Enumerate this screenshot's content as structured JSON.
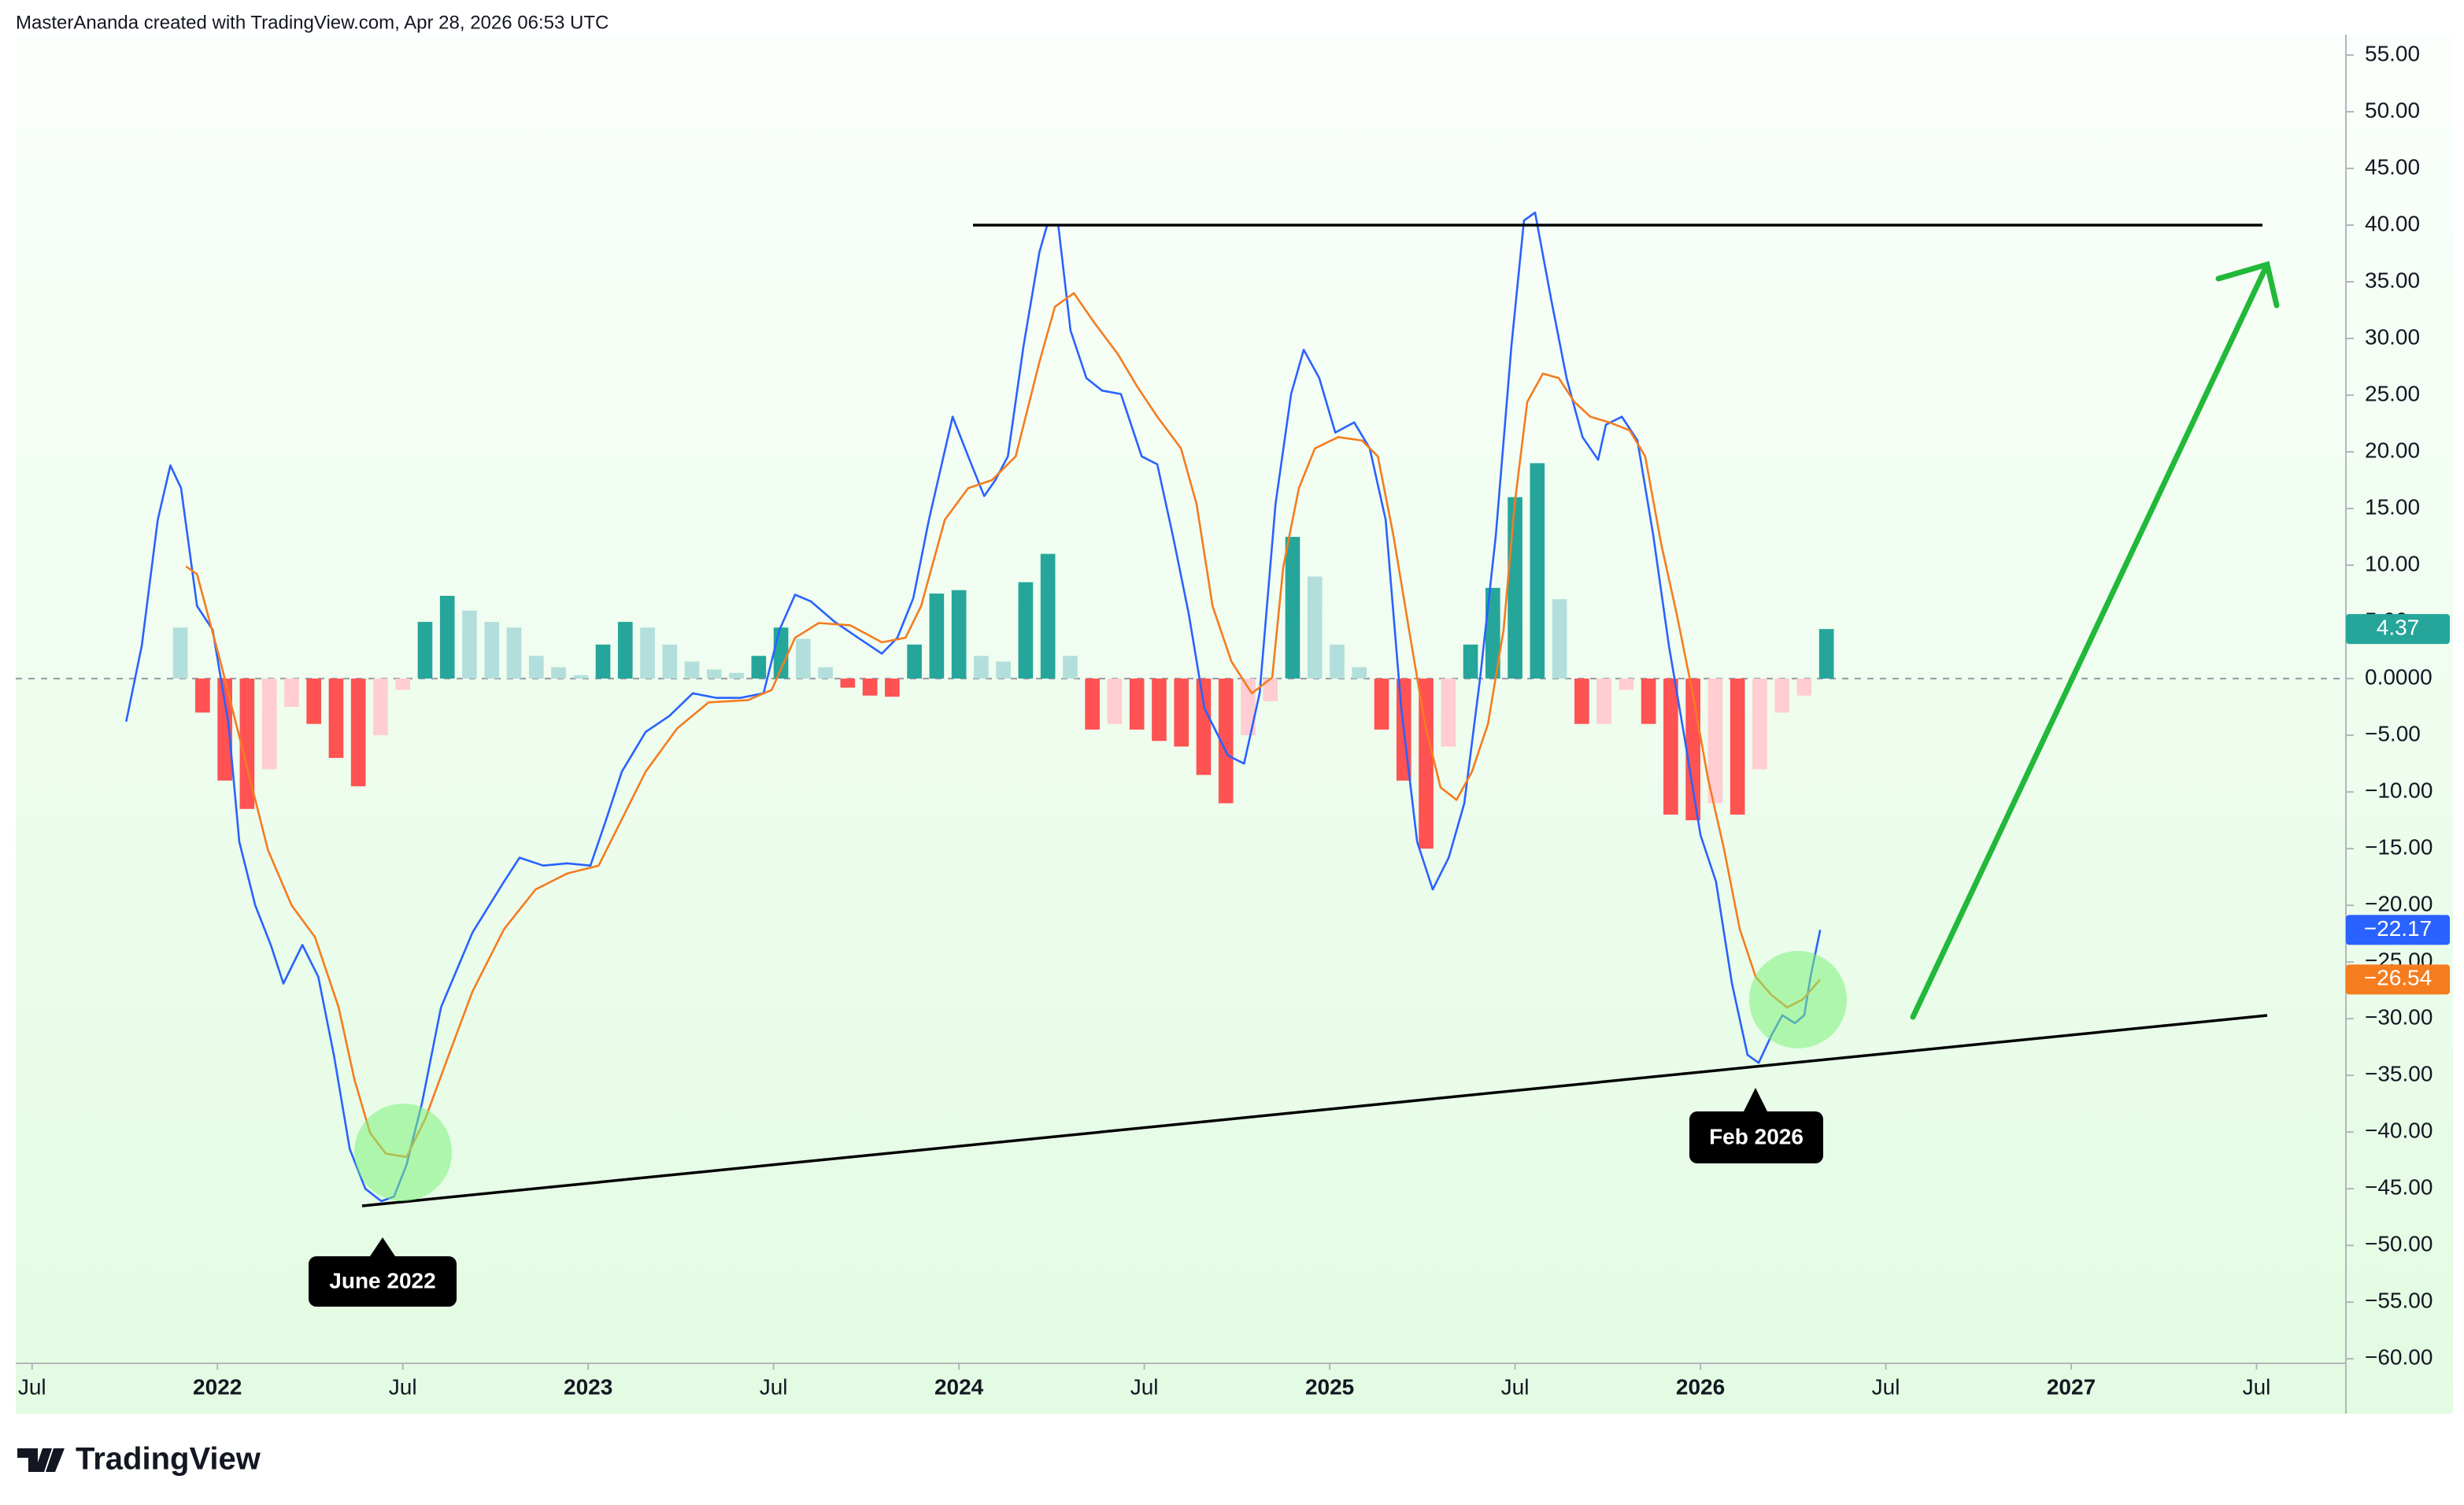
{
  "header": {
    "attribution": "MasterAnanda created with TradingView.com, Apr 28, 2026 06:53 UTC"
  },
  "footer": {
    "brand": "TradingView"
  },
  "chart_data": {
    "type": "line",
    "xlim": [
      2021.456,
      2027.741
    ],
    "ylim": [
      -60.4,
      56.8
    ],
    "xticks": [
      {
        "value": 2021.5,
        "label": "Jul"
      },
      2022,
      {
        "value": 2022.5,
        "label": "Jul"
      },
      2023,
      {
        "value": 2023.5,
        "label": "Jul"
      },
      2024,
      {
        "value": 2024.5,
        "label": "Jul"
      },
      2025,
      {
        "value": 2025.5,
        "label": "Jul"
      },
      2026,
      {
        "value": 2026.5,
        "label": "Jul"
      },
      2027,
      {
        "value": 2027.5,
        "label": "Jul"
      }
    ],
    "yticks": [
      {
        "value": 55,
        "label": "55.00"
      },
      {
        "value": 50,
        "label": "50.00"
      },
      {
        "value": 45,
        "label": "45.00"
      },
      {
        "value": 40,
        "label": "40.00"
      },
      {
        "value": 35,
        "label": "35.00"
      },
      {
        "value": 30,
        "label": "30.00"
      },
      {
        "value": 25,
        "label": "25.00"
      },
      {
        "value": 20,
        "label": "20.00"
      },
      {
        "value": 15,
        "label": "15.00"
      },
      {
        "value": 10,
        "label": "10.00"
      },
      {
        "value": 5,
        "label": "5.00"
      },
      {
        "value": 0,
        "label": "0.0000"
      },
      {
        "value": -5,
        "label": "−5.00"
      },
      {
        "value": -10,
        "label": "−10.00"
      },
      {
        "value": -15,
        "label": "−15.00"
      },
      {
        "value": -20,
        "label": "−20.00"
      },
      {
        "value": -25,
        "label": "−25.00"
      },
      {
        "value": -30,
        "label": "−30.00"
      },
      {
        "value": -35,
        "label": "−35.00"
      },
      {
        "value": -40,
        "label": "−40.00"
      },
      {
        "value": -45,
        "label": "−45.00"
      },
      {
        "value": -50,
        "label": "−50.00"
      },
      {
        "value": -55,
        "label": "−55.00"
      },
      {
        "value": -60,
        "label": "−60.00"
      }
    ],
    "zero_line": true,
    "annotations": [
      "June 2022",
      "Feb 2026"
    ],
    "series": [
      {
        "type": "bar",
        "colors": [
          "#26a69a",
          "#b2dfdb",
          "#ff5252",
          "#ffcdd2"
        ],
        "x": [
          2021.9,
          2021.96,
          2022.02,
          2022.08,
          2022.14,
          2022.2,
          2022.26,
          2022.32,
          2022.38,
          2022.44,
          2022.5,
          2022.56,
          2022.62,
          2022.68,
          2022.74,
          2022.8,
          2022.86,
          2022.92,
          2022.98,
          2023.04,
          2023.1,
          2023.16,
          2023.22,
          2023.28,
          2023.34,
          2023.4,
          2023.46,
          2023.52,
          2023.58,
          2023.64,
          2023.7,
          2023.76,
          2023.82,
          2023.88,
          2023.94,
          2024.0,
          2024.06,
          2024.12,
          2024.18,
          2024.24,
          2024.3,
          2024.36,
          2024.42,
          2024.48,
          2024.54,
          2024.6,
          2024.66,
          2024.72,
          2024.78,
          2024.84,
          2024.9,
          2024.96,
          2025.02,
          2025.08,
          2025.14,
          2025.2,
          2025.26,
          2025.32,
          2025.38,
          2025.44,
          2025.5,
          2025.56,
          2025.62,
          2025.68,
          2025.74,
          2025.8,
          2025.86,
          2025.92,
          2025.98,
          2026.04,
          2026.1,
          2026.16,
          2026.22,
          2026.28,
          2026.34
        ],
        "values": [
          4.5,
          -3,
          -9,
          -11.5,
          -8,
          -2.5,
          -4,
          -7,
          -9.5,
          -5,
          -1,
          5,
          7.3,
          6,
          5,
          4.5,
          2,
          1,
          0.3,
          3,
          5,
          4.5,
          3,
          1.5,
          0.8,
          0.5,
          2,
          4.5,
          3.5,
          1,
          -0.8,
          -1.5,
          -1.6,
          3,
          7.5,
          7.8,
          2,
          1.5,
          8.5,
          11,
          2,
          -4.5,
          -4,
          -4.5,
          -5.5,
          -6,
          -8.5,
          -11,
          -5,
          -2,
          12.5,
          9,
          3,
          1,
          -4.5,
          -9,
          -15,
          -6,
          3,
          8,
          16,
          19,
          7,
          -4,
          -4,
          -1,
          -4,
          -12,
          -12.5,
          -11,
          -12,
          -8,
          -3,
          -1.5,
          4.37
        ]
      },
      {
        "type": "line",
        "color": "#2962ff",
        "last_label": "−22.17",
        "x": [
          2021.754,
          2021.796,
          2021.839,
          2021.873,
          2021.902,
          2021.945,
          2021.987,
          2022.03,
          2022.059,
          2022.102,
          2022.144,
          2022.178,
          2022.229,
          2022.272,
          2022.314,
          2022.357,
          2022.399,
          2022.442,
          2022.476,
          2022.51,
          2022.552,
          2022.603,
          2022.688,
          2022.773,
          2022.815,
          2022.879,
          2022.943,
          2023.006,
          2023.049,
          2023.091,
          2023.155,
          2023.219,
          2023.282,
          2023.346,
          2023.41,
          2023.473,
          2023.516,
          2023.558,
          2023.601,
          2023.665,
          2023.728,
          2023.792,
          2023.834,
          2023.877,
          2023.919,
          2023.983,
          2024.025,
          2024.068,
          2024.098,
          2024.132,
          2024.174,
          2024.217,
          2024.238,
          2024.268,
          2024.301,
          2024.344,
          2024.386,
          2024.437,
          2024.493,
          2024.535,
          2024.577,
          2024.62,
          2024.662,
          2024.726,
          2024.769,
          2024.811,
          2024.854,
          2024.896,
          2024.93,
          2024.972,
          2025.015,
          2025.066,
          2025.108,
          2025.151,
          2025.193,
          2025.236,
          2025.278,
          2025.321,
          2025.363,
          2025.406,
          2025.448,
          2025.49,
          2025.524,
          2025.554,
          2025.597,
          2025.639,
          2025.682,
          2025.724,
          2025.745,
          2025.788,
          2025.83,
          2025.873,
          2025.915,
          2025.958,
          2026.0,
          2026.042,
          2026.085,
          2026.127,
          2026.157,
          2026.191,
          2026.221,
          2026.255,
          2026.28,
          2026.297,
          2026.323
        ],
        "values": [
          -3.8,
          2.9,
          14.0,
          18.8,
          16.8,
          6.4,
          4.3,
          -4.0,
          -14.4,
          -20.0,
          -23.5,
          -26.9,
          -23.5,
          -26.3,
          -33.2,
          -41.5,
          -45.0,
          -46.1,
          -45.7,
          -42.9,
          -37.4,
          -29.0,
          -22.4,
          -17.9,
          -15.8,
          -16.5,
          -16.3,
          -16.5,
          -12.4,
          -8.2,
          -4.7,
          -3.3,
          -1.3,
          -1.7,
          -1.7,
          -1.3,
          4.3,
          7.4,
          6.8,
          5.0,
          3.6,
          2.2,
          3.6,
          7.1,
          14.0,
          23.1,
          19.6,
          16.1,
          17.5,
          19.6,
          29.3,
          37.6,
          40.0,
          40.0,
          30.7,
          26.5,
          25.4,
          25.1,
          19.6,
          18.9,
          12.6,
          5.7,
          -2.6,
          -6.8,
          -7.5,
          -1.3,
          15.4,
          25.1,
          29.0,
          26.5,
          21.7,
          22.6,
          20.3,
          14.0,
          -2.6,
          -14.4,
          -18.6,
          -15.8,
          -11.0,
          0.1,
          12.6,
          29.3,
          40.4,
          41.1,
          33.5,
          26.5,
          21.3,
          19.3,
          22.4,
          23.1,
          21.0,
          12.6,
          2.9,
          -5.4,
          -13.8,
          -17.9,
          -26.9,
          -33.2,
          -33.9,
          -31.5,
          -29.7,
          -30.4,
          -29.7,
          -26.3,
          -22.17
        ]
      },
      {
        "type": "line",
        "color": "#f57c1f",
        "last_label": "−26.54",
        "x": [
          2021.915,
          2021.945,
          2022.008,
          2022.072,
          2022.136,
          2022.2,
          2022.263,
          2022.327,
          2022.369,
          2022.412,
          2022.454,
          2022.51,
          2022.561,
          2022.624,
          2022.688,
          2022.773,
          2022.858,
          2022.943,
          2023.028,
          2023.091,
          2023.155,
          2023.24,
          2023.325,
          2023.431,
          2023.495,
          2023.558,
          2023.622,
          2023.707,
          2023.792,
          2023.856,
          2023.898,
          2023.962,
          2024.025,
          2024.089,
          2024.153,
          2024.217,
          2024.259,
          2024.31,
          2024.365,
          2024.429,
          2024.48,
          2024.535,
          2024.599,
          2024.641,
          2024.684,
          2024.735,
          2024.79,
          2024.845,
          2024.875,
          2024.917,
          2024.96,
          2025.023,
          2025.087,
          2025.13,
          2025.172,
          2025.214,
          2025.257,
          2025.299,
          2025.342,
          2025.384,
          2025.427,
          2025.469,
          2025.499,
          2025.533,
          2025.575,
          2025.618,
          2025.66,
          2025.703,
          2025.754,
          2025.809,
          2025.851,
          2025.894,
          2025.936,
          2025.979,
          2026.021,
          2026.064,
          2026.106,
          2026.149,
          2026.191,
          2026.234,
          2026.276,
          2026.323
        ],
        "values": [
          9.9,
          9.2,
          1.5,
          -6.8,
          -15.1,
          -20.0,
          -22.8,
          -29.0,
          -35.3,
          -40.1,
          -41.9,
          -42.2,
          -38.8,
          -33.2,
          -27.6,
          -22.1,
          -18.6,
          -17.2,
          -16.5,
          -12.4,
          -8.2,
          -4.4,
          -2.1,
          -1.9,
          -1.0,
          3.6,
          4.9,
          4.7,
          3.2,
          3.6,
          6.4,
          14.0,
          16.8,
          17.5,
          19.6,
          27.9,
          32.8,
          34.0,
          31.4,
          28.6,
          25.8,
          23.1,
          20.3,
          15.4,
          6.4,
          1.5,
          -1.3,
          0.1,
          9.9,
          16.8,
          20.3,
          21.3,
          21.0,
          19.6,
          12.6,
          4.3,
          -4.0,
          -9.6,
          -10.7,
          -8.2,
          -4.0,
          4.3,
          15.4,
          24.4,
          26.9,
          26.5,
          24.4,
          23.1,
          22.6,
          21.9,
          19.6,
          11.9,
          5.7,
          -1.3,
          -8.9,
          -15.1,
          -22.1,
          -26.3,
          -27.9,
          -29.0,
          -28.3,
          -26.54
        ]
      }
    ]
  }
}
